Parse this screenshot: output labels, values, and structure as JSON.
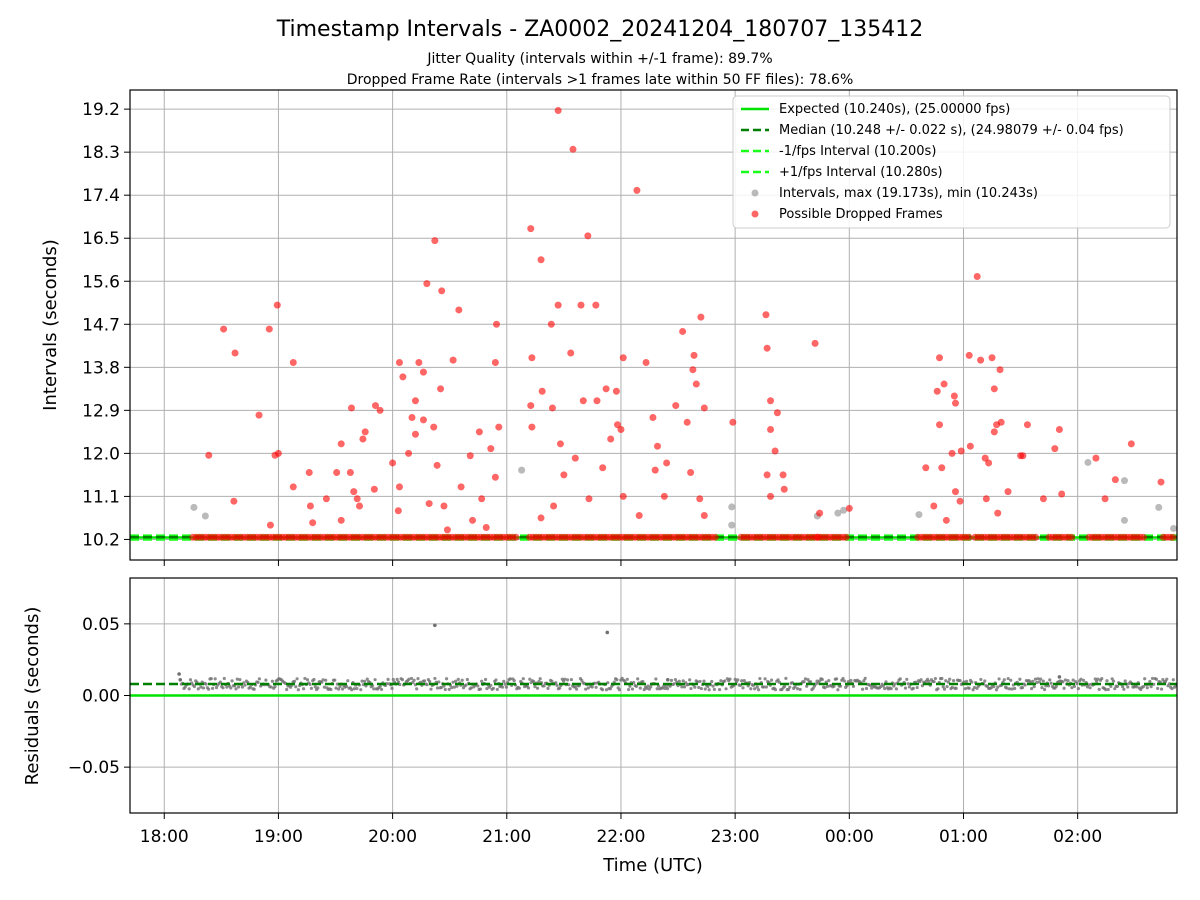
{
  "title": "Timestamp Intervals - ZA0002_20241204_180707_135412",
  "subtitle_line1": "Jitter Quality (intervals within +/-1 frame): 89.7%",
  "subtitle_line2": "Dropped Frame Rate (intervals >1 frames late within 50 FF files): 78.6%",
  "colors": {
    "expected": "#00e400",
    "median": "#007f00",
    "interval_band": "#19ff19",
    "gray_points": "#8c8c8c",
    "red_points": "#ff0000",
    "residual_points": "#707070"
  },
  "chart_data": [
    {
      "type": "scatter",
      "ylabel": "Intervals (seconds)",
      "ylim": [
        9.77,
        19.6
      ],
      "xlim": [
        17.7,
        26.87
      ],
      "yticks": [
        "10.2",
        "11.1",
        "12.0",
        "12.9",
        "13.8",
        "14.7",
        "15.6",
        "16.5",
        "17.4",
        "18.3",
        "19.2"
      ],
      "ytick_values": [
        10.2,
        11.1,
        12.0,
        12.9,
        13.8,
        14.7,
        15.6,
        16.5,
        17.4,
        18.3,
        19.2
      ],
      "grid": true,
      "legend_position": "top-right",
      "legend": [
        "Expected (10.240s), (25.00000 fps)",
        "Median (10.248 +/- 0.022 s), (24.98079 +/- 0.04 fps)",
        "-1/fps Interval (10.200s)",
        "+1/fps Interval (10.280s)",
        "Intervals, max (19.173s), min (10.243s)",
        "Possible Dropped Frames"
      ],
      "lines": {
        "expected": 10.24,
        "median": 10.248,
        "minus_1fps": 10.2,
        "plus_1fps": 10.28
      },
      "baseline_dropped_segments": [
        [
          18.25,
          21.1
        ],
        [
          21.2,
          22.85
        ],
        [
          23.05,
          23.75
        ],
        [
          23.72,
          24.0
        ],
        [
          24.6,
          25.05
        ],
        [
          25.1,
          25.65
        ],
        [
          25.75,
          25.95
        ],
        [
          26.1,
          26.6
        ],
        [
          26.75,
          26.85
        ]
      ],
      "gray_points": [
        {
          "x": 18.26,
          "y": 10.87
        },
        {
          "x": 18.36,
          "y": 10.69
        },
        {
          "x": 21.13,
          "y": 11.65
        },
        {
          "x": 22.97,
          "y": 10.88
        },
        {
          "x": 22.97,
          "y": 10.5
        },
        {
          "x": 23.72,
          "y": 10.69
        },
        {
          "x": 23.9,
          "y": 10.75
        },
        {
          "x": 23.95,
          "y": 10.81
        },
        {
          "x": 24.61,
          "y": 10.72
        },
        {
          "x": 26.09,
          "y": 11.81
        },
        {
          "x": 26.41,
          "y": 11.43
        },
        {
          "x": 26.41,
          "y": 10.6
        },
        {
          "x": 26.71,
          "y": 10.87
        },
        {
          "x": 26.84,
          "y": 10.43
        }
      ],
      "red_points": [
        {
          "x": 18.39,
          "y": 11.96
        },
        {
          "x": 18.52,
          "y": 14.6
        },
        {
          "x": 18.62,
          "y": 14.1
        },
        {
          "x": 18.61,
          "y": 11.0
        },
        {
          "x": 18.83,
          "y": 12.8
        },
        {
          "x": 18.92,
          "y": 14.6
        },
        {
          "x": 18.99,
          "y": 15.1
        },
        {
          "x": 18.97,
          "y": 11.96
        },
        {
          "x": 19.0,
          "y": 12.0
        },
        {
          "x": 18.93,
          "y": 10.5
        },
        {
          "x": 19.13,
          "y": 13.9
        },
        {
          "x": 19.13,
          "y": 11.3
        },
        {
          "x": 19.27,
          "y": 11.6
        },
        {
          "x": 19.28,
          "y": 10.9
        },
        {
          "x": 19.3,
          "y": 10.55
        },
        {
          "x": 19.42,
          "y": 11.05
        },
        {
          "x": 19.51,
          "y": 11.6
        },
        {
          "x": 19.55,
          "y": 12.2
        },
        {
          "x": 19.55,
          "y": 10.6
        },
        {
          "x": 19.63,
          "y": 11.6
        },
        {
          "x": 19.64,
          "y": 12.95
        },
        {
          "x": 19.66,
          "y": 11.2
        },
        {
          "x": 19.69,
          "y": 11.05
        },
        {
          "x": 19.71,
          "y": 10.9
        },
        {
          "x": 19.74,
          "y": 12.3
        },
        {
          "x": 19.76,
          "y": 12.45
        },
        {
          "x": 19.84,
          "y": 11.25
        },
        {
          "x": 19.85,
          "y": 13.0
        },
        {
          "x": 19.89,
          "y": 12.9
        },
        {
          "x": 20.0,
          "y": 11.8
        },
        {
          "x": 20.05,
          "y": 10.8
        },
        {
          "x": 20.06,
          "y": 13.9
        },
        {
          "x": 20.06,
          "y": 11.3
        },
        {
          "x": 20.09,
          "y": 13.6
        },
        {
          "x": 20.14,
          "y": 12.0
        },
        {
          "x": 20.17,
          "y": 12.75
        },
        {
          "x": 20.2,
          "y": 13.1
        },
        {
          "x": 20.2,
          "y": 12.4
        },
        {
          "x": 20.23,
          "y": 13.9
        },
        {
          "x": 20.27,
          "y": 12.7
        },
        {
          "x": 20.27,
          "y": 13.7
        },
        {
          "x": 20.3,
          "y": 15.55
        },
        {
          "x": 20.32,
          "y": 10.95
        },
        {
          "x": 20.36,
          "y": 12.55
        },
        {
          "x": 20.37,
          "y": 16.45
        },
        {
          "x": 20.39,
          "y": 11.75
        },
        {
          "x": 20.42,
          "y": 13.35
        },
        {
          "x": 20.43,
          "y": 15.4
        },
        {
          "x": 20.45,
          "y": 10.9
        },
        {
          "x": 20.48,
          "y": 10.4
        },
        {
          "x": 20.53,
          "y": 13.95
        },
        {
          "x": 20.58,
          "y": 15.0
        },
        {
          "x": 20.6,
          "y": 11.3
        },
        {
          "x": 20.68,
          "y": 11.95
        },
        {
          "x": 20.7,
          "y": 10.6
        },
        {
          "x": 20.76,
          "y": 12.45
        },
        {
          "x": 20.78,
          "y": 11.05
        },
        {
          "x": 20.82,
          "y": 10.45
        },
        {
          "x": 20.86,
          "y": 12.1
        },
        {
          "x": 20.9,
          "y": 13.9
        },
        {
          "x": 20.91,
          "y": 14.7
        },
        {
          "x": 20.9,
          "y": 11.5
        },
        {
          "x": 20.93,
          "y": 12.55
        },
        {
          "x": 21.21,
          "y": 16.7
        },
        {
          "x": 21.21,
          "y": 13.0
        },
        {
          "x": 21.22,
          "y": 12.55
        },
        {
          "x": 21.22,
          "y": 14.0
        },
        {
          "x": 21.3,
          "y": 16.05
        },
        {
          "x": 21.31,
          "y": 13.3
        },
        {
          "x": 21.3,
          "y": 10.65
        },
        {
          "x": 21.39,
          "y": 14.7
        },
        {
          "x": 21.4,
          "y": 12.95
        },
        {
          "x": 21.41,
          "y": 10.9
        },
        {
          "x": 21.45,
          "y": 19.17
        },
        {
          "x": 21.45,
          "y": 15.1
        },
        {
          "x": 21.47,
          "y": 12.2
        },
        {
          "x": 21.5,
          "y": 11.55
        },
        {
          "x": 21.56,
          "y": 14.1
        },
        {
          "x": 21.58,
          "y": 18.36
        },
        {
          "x": 21.6,
          "y": 11.9
        },
        {
          "x": 21.65,
          "y": 15.1
        },
        {
          "x": 21.67,
          "y": 13.1
        },
        {
          "x": 21.71,
          "y": 16.55
        },
        {
          "x": 21.72,
          "y": 11.05
        },
        {
          "x": 21.78,
          "y": 15.1
        },
        {
          "x": 21.79,
          "y": 13.1
        },
        {
          "x": 21.84,
          "y": 11.7
        },
        {
          "x": 21.87,
          "y": 13.35
        },
        {
          "x": 21.91,
          "y": 12.3
        },
        {
          "x": 21.96,
          "y": 13.3
        },
        {
          "x": 21.97,
          "y": 12.6
        },
        {
          "x": 22.0,
          "y": 12.5
        },
        {
          "x": 22.02,
          "y": 14.0
        },
        {
          "x": 22.02,
          "y": 11.1
        },
        {
          "x": 22.14,
          "y": 17.5
        },
        {
          "x": 22.16,
          "y": 10.7
        },
        {
          "x": 22.22,
          "y": 13.9
        },
        {
          "x": 22.28,
          "y": 12.75
        },
        {
          "x": 22.3,
          "y": 11.65
        },
        {
          "x": 22.32,
          "y": 12.15
        },
        {
          "x": 22.38,
          "y": 11.1
        },
        {
          "x": 22.4,
          "y": 11.8
        },
        {
          "x": 22.48,
          "y": 13.0
        },
        {
          "x": 22.54,
          "y": 14.55
        },
        {
          "x": 22.58,
          "y": 12.65
        },
        {
          "x": 22.61,
          "y": 11.6
        },
        {
          "x": 22.63,
          "y": 13.75
        },
        {
          "x": 22.64,
          "y": 14.05
        },
        {
          "x": 22.66,
          "y": 13.45
        },
        {
          "x": 22.69,
          "y": 11.05
        },
        {
          "x": 22.7,
          "y": 14.85
        },
        {
          "x": 22.73,
          "y": 12.95
        },
        {
          "x": 22.73,
          "y": 10.7
        },
        {
          "x": 22.98,
          "y": 12.65
        },
        {
          "x": 23.27,
          "y": 14.9
        },
        {
          "x": 23.28,
          "y": 14.2
        },
        {
          "x": 23.28,
          "y": 11.55
        },
        {
          "x": 23.31,
          "y": 13.1
        },
        {
          "x": 23.31,
          "y": 12.5
        },
        {
          "x": 23.31,
          "y": 11.1
        },
        {
          "x": 23.35,
          "y": 12.05
        },
        {
          "x": 23.37,
          "y": 12.85
        },
        {
          "x": 23.42,
          "y": 11.55
        },
        {
          "x": 23.43,
          "y": 11.25
        },
        {
          "x": 23.7,
          "y": 14.3
        },
        {
          "x": 23.74,
          "y": 10.75
        },
        {
          "x": 24.0,
          "y": 10.85
        },
        {
          "x": 24.67,
          "y": 11.7
        },
        {
          "x": 24.74,
          "y": 10.9
        },
        {
          "x": 24.77,
          "y": 13.3
        },
        {
          "x": 24.79,
          "y": 12.6
        },
        {
          "x": 24.79,
          "y": 14.0
        },
        {
          "x": 24.81,
          "y": 11.7
        },
        {
          "x": 24.83,
          "y": 13.45
        },
        {
          "x": 24.85,
          "y": 10.6
        },
        {
          "x": 24.9,
          "y": 12.0
        },
        {
          "x": 24.92,
          "y": 13.2
        },
        {
          "x": 24.93,
          "y": 11.2
        },
        {
          "x": 24.93,
          "y": 13.05
        },
        {
          "x": 24.97,
          "y": 11.0
        },
        {
          "x": 24.98,
          "y": 12.05
        },
        {
          "x": 25.05,
          "y": 14.05
        },
        {
          "x": 25.06,
          "y": 12.15
        },
        {
          "x": 25.12,
          "y": 15.7
        },
        {
          "x": 25.15,
          "y": 13.95
        },
        {
          "x": 25.19,
          "y": 11.9
        },
        {
          "x": 25.2,
          "y": 11.05
        },
        {
          "x": 25.22,
          "y": 11.8
        },
        {
          "x": 25.25,
          "y": 14.0
        },
        {
          "x": 25.27,
          "y": 13.35
        },
        {
          "x": 25.27,
          "y": 12.45
        },
        {
          "x": 25.29,
          "y": 12.6
        },
        {
          "x": 25.32,
          "y": 13.75
        },
        {
          "x": 25.33,
          "y": 12.65
        },
        {
          "x": 25.3,
          "y": 10.75
        },
        {
          "x": 25.39,
          "y": 11.2
        },
        {
          "x": 25.5,
          "y": 11.95
        },
        {
          "x": 25.52,
          "y": 11.95
        },
        {
          "x": 25.56,
          "y": 12.6
        },
        {
          "x": 25.7,
          "y": 11.05
        },
        {
          "x": 25.8,
          "y": 12.1
        },
        {
          "x": 25.84,
          "y": 12.5
        },
        {
          "x": 25.86,
          "y": 11.15
        },
        {
          "x": 26.16,
          "y": 11.9
        },
        {
          "x": 26.24,
          "y": 11.05
        },
        {
          "x": 26.33,
          "y": 11.45
        },
        {
          "x": 26.47,
          "y": 12.2
        },
        {
          "x": 26.73,
          "y": 11.4
        }
      ]
    },
    {
      "type": "scatter",
      "xlabel": "Time (UTC)",
      "ylabel": "Residuals (seconds)",
      "ylim": [
        -0.082,
        0.082
      ],
      "yticks": [
        "−0.05",
        "0.00",
        "0.05"
      ],
      "ytick_values": [
        -0.05,
        0.0,
        0.05
      ],
      "xticks": [
        "18:00",
        "19:00",
        "20:00",
        "21:00",
        "22:00",
        "23:00",
        "00:00",
        "01:00",
        "02:00"
      ],
      "xtick_values": [
        18,
        19,
        20,
        21,
        22,
        23,
        24,
        25,
        26
      ],
      "grid": true,
      "lines": {
        "expected": 0.0,
        "median": 0.008
      },
      "band": {
        "x_start": 18.15,
        "x_end": 26.87,
        "center": 0.008,
        "spread": 0.004
      },
      "points": [
        {
          "x": 18.13,
          "y": 0.015
        },
        {
          "x": 18.14,
          "y": 0.011
        },
        {
          "x": 20.37,
          "y": 0.049
        },
        {
          "x": 21.88,
          "y": 0.044
        },
        {
          "x": 25.84,
          "y": 0.013
        },
        {
          "x": 22.41,
          "y": 0.011
        }
      ]
    }
  ]
}
